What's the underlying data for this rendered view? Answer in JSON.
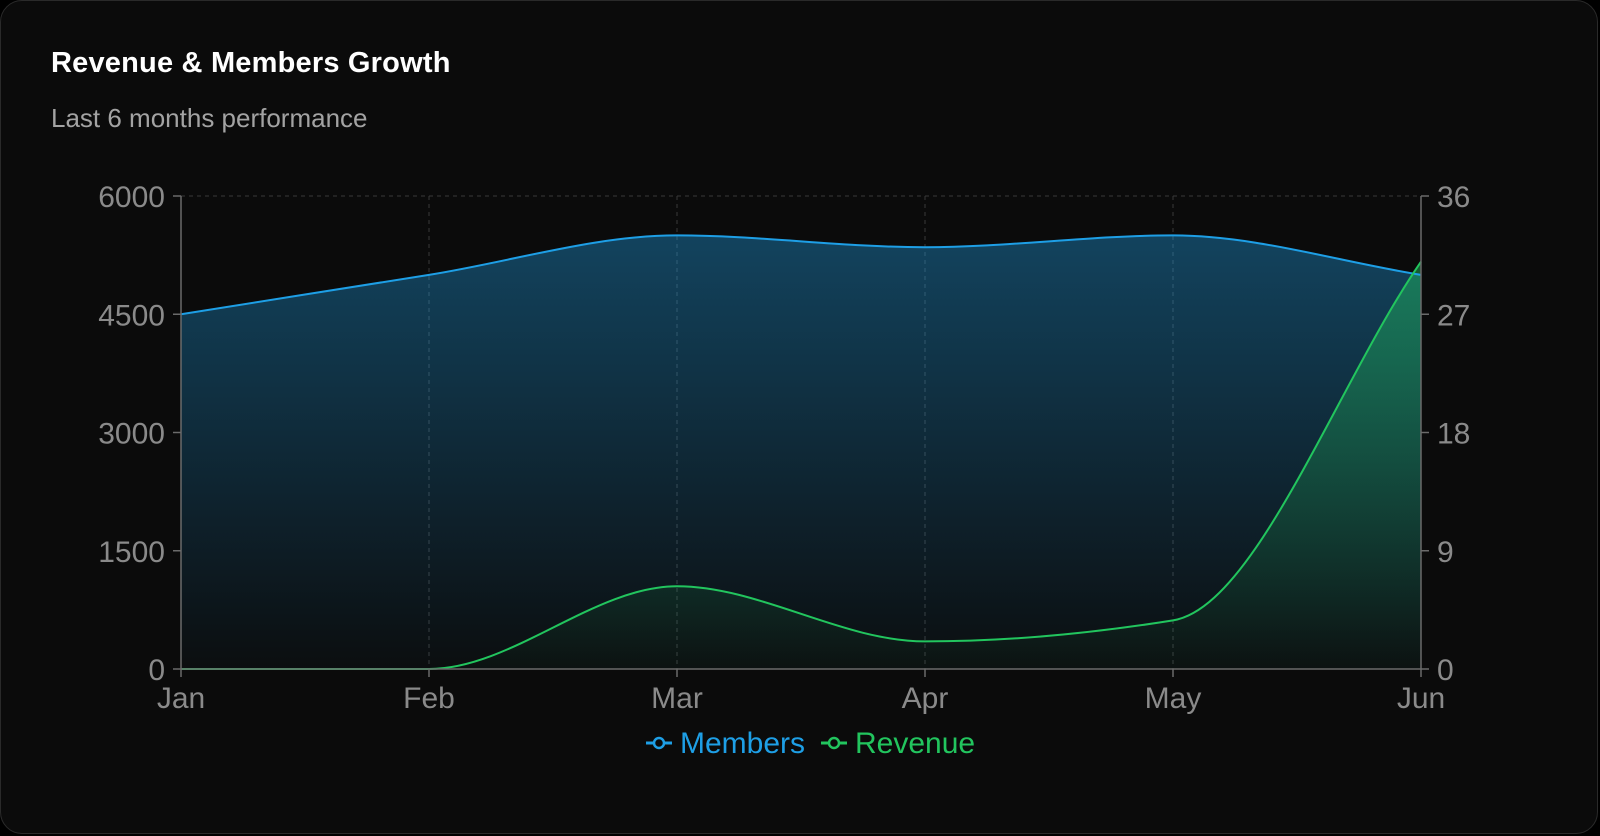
{
  "card": {
    "title": "Revenue & Members Growth",
    "subtitle": "Last 6 months performance"
  },
  "colors": {
    "background": "#0b0b0b",
    "members": "#1e9fe6",
    "revenue": "#22c55e",
    "axis": "#6b6b6b",
    "grid": "#3a3a3a",
    "tick_text": "#8a8a8a"
  },
  "chart_data": {
    "type": "area",
    "title": "Revenue & Members Growth",
    "subtitle": "Last 6 months performance",
    "categories": [
      "Jan",
      "Feb",
      "Mar",
      "Apr",
      "May",
      "Jun"
    ],
    "series": [
      {
        "name": "Members",
        "axis": "left",
        "color": "#1e9fe6",
        "values": [
          4500,
          5000,
          5500,
          5350,
          5500,
          5000
        ]
      },
      {
        "name": "Revenue",
        "axis": "right",
        "color": "#22c55e",
        "values": [
          0,
          0,
          6.3,
          2.1,
          3.7,
          31
        ]
      }
    ],
    "y_left": {
      "ylim": [
        0,
        6000
      ],
      "ticks": [
        0,
        1500,
        3000,
        4500,
        6000
      ],
      "tick_labels": [
        "0",
        "1500",
        "3000",
        "4500",
        "6000"
      ]
    },
    "y_right": {
      "ylim": [
        0,
        36
      ],
      "ticks": [
        0,
        9,
        18,
        27,
        36
      ],
      "tick_labels": [
        "0",
        "9",
        "18",
        "27",
        "36"
      ]
    },
    "xlabel": "",
    "ylabel": "",
    "grid": "vertical dashed",
    "legend": {
      "position": "bottom-center",
      "entries": [
        "Members",
        "Revenue"
      ]
    }
  }
}
